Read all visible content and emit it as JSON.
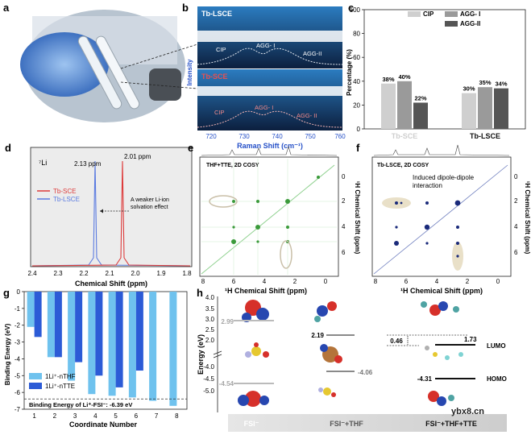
{
  "panel_labels": [
    "a",
    "b",
    "c",
    "d",
    "e",
    "f",
    "g",
    "h"
  ],
  "panel_b": {
    "top_label": "Tb-LSCE",
    "bottom_label": "Tb-SCE",
    "peaks_top": [
      "CIP",
      "AGG- I",
      "AGG-II"
    ],
    "peaks_bottom": [
      "CIP",
      "AGG- I",
      "AGG- II"
    ],
    "ylabel": "Intensity",
    "xlabel": "Raman Shift (cm⁻¹)",
    "ticks": [
      "720",
      "730",
      "740",
      "750",
      "760"
    ]
  },
  "panel_d": {
    "nucleus": "⁷Li",
    "peak_lsce": "2.13 ppm",
    "peak_sce": "2.01 ppm",
    "legend": [
      "Tb-SCE",
      "Tb-LSCE"
    ],
    "annotation": [
      "A weaker Li-ion",
      "solvation effect"
    ],
    "xlabel": "Chemical Shift (ppm)",
    "ticks": [
      "2.4",
      "2.3",
      "2.2",
      "2.1",
      "2.0",
      "1.9",
      "1.8"
    ]
  },
  "panel_e": {
    "title": "THF+TTE, 2D COSY",
    "xlabel": "¹H Chemical Shift (ppm)",
    "ylabel": "¹H Chemical Shift (ppm)",
    "xticks": [
      "8",
      "6",
      "4",
      "2",
      "0"
    ],
    "yticks": [
      "0",
      "2",
      "4",
      "6"
    ]
  },
  "panel_f": {
    "title": "Tb-LSCE, 2D COSY",
    "annotation": [
      "Induced dipole-dipole",
      "interaction"
    ],
    "xlabel": "¹H Chemical Shift (ppm)",
    "ylabel": "¹H Chemical Shift (ppm)",
    "xticks": [
      "8",
      "6",
      "4",
      "2",
      "0"
    ],
    "yticks": [
      "0",
      "2",
      "4",
      "6"
    ]
  },
  "panel_h": {
    "ylabel": "Energy (eV)",
    "yticks": [
      "4.0",
      "3.5",
      "3.0",
      "2.5",
      "2.0",
      "-4.0",
      "-4.5",
      "-5.0"
    ],
    "values": [
      "2.99",
      "-4.54",
      "2.19",
      "-4.06",
      "0.46",
      "1.73",
      "-4.31"
    ],
    "orbital_labels": [
      "LUMO",
      "HOMO"
    ],
    "columns": [
      "FSI⁻",
      "FSI⁻+THF",
      "FSI⁻+THF+TTE"
    ]
  },
  "watermark": "ybx8.cn",
  "chart_data": [
    {
      "type": "bar",
      "panel": "c",
      "ylabel": "Percentage (%)",
      "ylim": [
        0,
        100
      ],
      "yticks": [
        "0",
        "20",
        "40",
        "60",
        "80",
        "100"
      ],
      "categories": [
        "Tb-SCE",
        "Tb-LSCE"
      ],
      "series": [
        {
          "name": "CIP",
          "values": [
            38,
            30
          ],
          "color": "#cfcfcf"
        },
        {
          "name": "AGG- I",
          "values": [
            40,
            35
          ],
          "color": "#9a9a9a"
        },
        {
          "name": "AGG-II",
          "values": [
            22,
            34
          ],
          "color": "#555555"
        }
      ],
      "value_labels": [
        [
          "38%",
          "30%"
        ],
        [
          "40%",
          "35%"
        ],
        [
          "22%",
          "34%"
        ]
      ],
      "legend": "top"
    },
    {
      "type": "bar",
      "panel": "g",
      "xlabel": "Coordinate Number",
      "ylabel": "Binding Energy (eV)",
      "ylim": [
        -7,
        0
      ],
      "yticks": [
        "0",
        "-1",
        "-2",
        "-3",
        "-4",
        "-5",
        "-6",
        "-7"
      ],
      "categories": [
        "1",
        "2",
        "3",
        "4",
        "5",
        "6",
        "7",
        "8"
      ],
      "series": [
        {
          "name": "1Li⁺-nTHF",
          "values": [
            -2.1,
            -3.9,
            -5.3,
            -6.1,
            -6.2,
            -6.3,
            -6.5,
            -6.8
          ],
          "color": "#6fc2ee"
        },
        {
          "name": "1Li⁺-nTTE",
          "values": [
            -2.7,
            -3.9,
            -4.2,
            -5.0,
            -5.7,
            -4.7,
            null,
            null
          ],
          "color": "#2c5bd6"
        }
      ],
      "reference": {
        "label": "Binding Energy of Li⁺-FSI⁻: -6.39 eV",
        "value": -6.39
      },
      "legend": "bottom-left"
    }
  ]
}
